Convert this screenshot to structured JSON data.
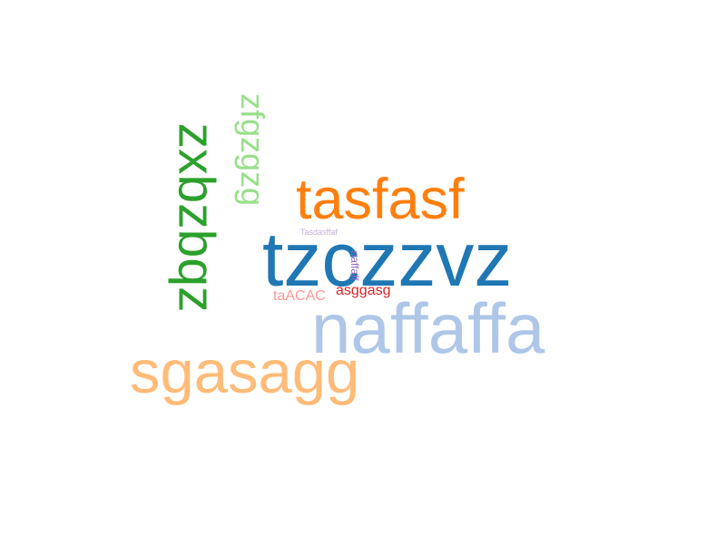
{
  "words": {
    "tzczzvz": {
      "text": "tzczzvz",
      "color": "#1f77b4"
    },
    "naffaffa": {
      "text": "naffaffa",
      "color": "#aec7e8"
    },
    "sgasagg": {
      "text": "sgasagg",
      "color": "#ffbb78"
    },
    "tasfasf": {
      "text": "tasfasf",
      "color": "#ff7f0e"
    },
    "zxbzbqz": {
      "text": "zxbzbqz",
      "color": "#2ca02c"
    },
    "zfgzgzg": {
      "text": "zfgzgzg",
      "color": "#98df8a"
    },
    "asggasg": {
      "text": "asggasg",
      "color": "#d62728"
    },
    "taACAC": {
      "text": "taACAC",
      "color": "#ff9896"
    },
    "naffaff": {
      "text": "naffaff",
      "color": "#9467bd"
    },
    "Tasdasffaf": {
      "text": "Tasdasffaf",
      "color": "#c5b0d5"
    }
  }
}
